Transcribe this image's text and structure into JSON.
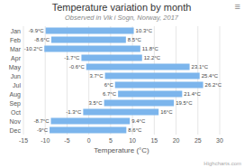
{
  "chart_data": {
    "type": "range_bar",
    "orientation": "horizontal",
    "title": "Temperature variation by month",
    "subtitle": "Observed in Vik i Sogn, Norway, 2017",
    "xlabel": "Temperature (°C)",
    "watermark": "Highcharts.com",
    "menu_icon": "≡",
    "categories": [
      "Jan",
      "Feb",
      "Mar",
      "Apr",
      "May",
      "Jun",
      "Jul",
      "Aug",
      "Sep",
      "Oct",
      "Nov",
      "Dec"
    ],
    "low": [
      -9.9,
      -8.6,
      -10.2,
      -1.7,
      -0.6,
      3.7,
      6.0,
      6.7,
      3.5,
      -1.3,
      -8.7,
      -9.0
    ],
    "high": [
      10.3,
      8.5,
      11.8,
      12.2,
      23.1,
      25.4,
      26.2,
      21.4,
      19.5,
      16.0,
      9.4,
      8.6
    ],
    "low_labels": [
      "-9.9°C",
      "-8.6°C",
      "-10.2°C",
      "-1.7°C",
      "-0.6°C",
      "3.7°C",
      "6°C",
      "6.7°C",
      "3.5°C",
      "-1.3°C",
      "-8.7°C",
      "-9°C"
    ],
    "high_labels": [
      "10.3°C",
      "8.5°C",
      "11.8°C",
      "12.2°C",
      "23.1°C",
      "25.4°C",
      "26.2°C",
      "21.4°C",
      "19.5°C",
      "16°C",
      "9.4°C",
      "8.6°C"
    ],
    "data_labels": true,
    "color": "#7cb5ec",
    "xlim": [
      -15,
      30
    ],
    "xticks": [
      -15,
      -10,
      -5,
      0,
      5,
      10,
      15,
      20,
      25,
      30
    ],
    "grid": true
  }
}
